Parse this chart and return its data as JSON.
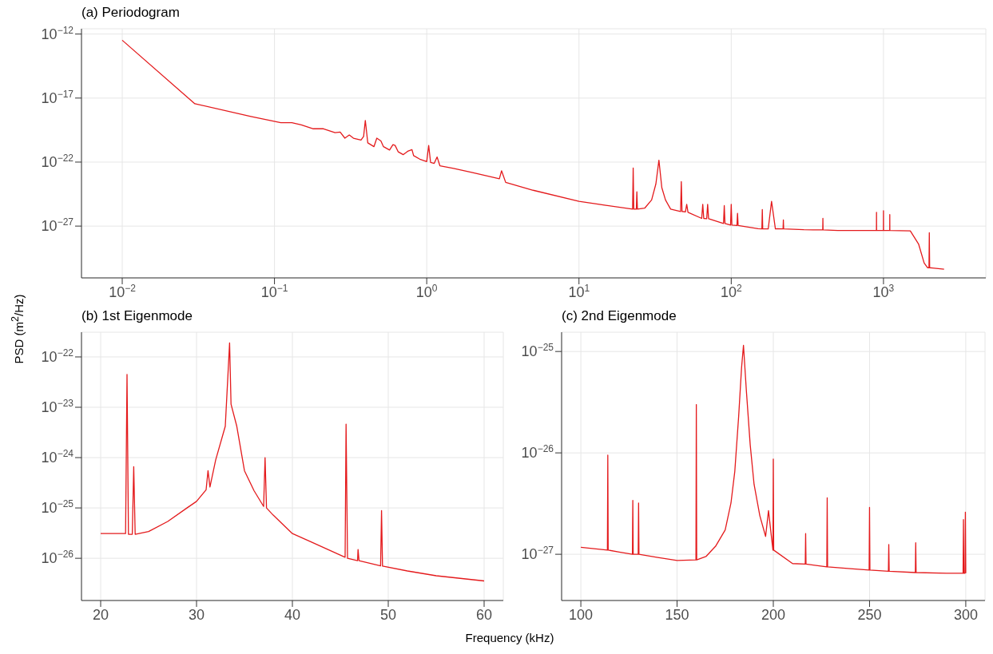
{
  "chart_data": [
    {
      "type": "line",
      "title": "(a) Periodogram",
      "log": "xy",
      "grid": true,
      "legend": false,
      "marker": "none",
      "line_style": "solid",
      "xlim": [
        0.0054,
        4700
      ],
      "ylim": [
        9e-32,
        2.6e-12
      ],
      "xticks": [
        {
          "value": 0.01,
          "label": "10$^{−2}$"
        },
        {
          "value": 0.1,
          "label": "10$^{−1}$"
        },
        {
          "value": 1,
          "label": "10$^{0}$"
        },
        {
          "value": 10,
          "label": "10$^{1}$"
        },
        {
          "value": 100,
          "label": "10$^{2}$"
        },
        {
          "value": 1000,
          "label": "10$^{3}$"
        }
      ],
      "yticks": [
        {
          "value": 1e-12,
          "label": "10$^{−12}$"
        },
        {
          "value": 1e-17,
          "label": "10$^{−17}$"
        },
        {
          "value": 1e-22,
          "label": "10$^{−22}$"
        },
        {
          "value": 1e-27,
          "label": "10$^{−27}$"
        }
      ],
      "series": [
        {
          "color": "#e41a1c",
          "x": [
            0.01,
            0.03,
            0.07,
            0.11,
            0.13,
            0.15,
            0.18,
            0.21,
            0.25,
            0.27,
            0.29,
            0.31,
            0.33,
            0.37,
            0.385,
            0.395,
            0.41,
            0.45,
            0.47,
            0.5,
            0.52,
            0.57,
            0.6,
            0.62,
            0.65,
            0.7,
            0.75,
            0.8,
            0.82,
            0.9,
            1.0,
            1.03,
            1.06,
            1.12,
            1.17,
            1.22,
            1.5,
            2,
            3.0,
            3.1,
            3.3,
            5,
            10,
            15,
            22.5,
            22.7,
            22.9,
            23.8,
            24.0,
            24.2,
            27,
            30,
            32,
            33.5,
            35,
            37,
            40,
            46.5,
            47,
            47.5,
            50,
            51,
            52,
            64,
            65,
            66,
            69,
            70,
            71,
            89,
            90,
            91,
            99,
            100,
            101,
            109,
            110,
            111,
            150,
            159,
            160,
            161,
            175,
            184,
            195,
            200,
            219,
            220,
            221,
            300,
            399,
            400,
            401,
            500,
            899,
            900,
            901,
            999,
            1000,
            1001,
            1099,
            1100,
            1101,
            1500,
            1700,
            1850,
            1950,
            1990,
            2000,
            2010,
            2100,
            2500
          ],
          "values": [
            3.3e-13,
            3.6e-18,
            3.7e-19,
            1.2e-19,
            1.2e-19,
            8e-20,
            4e-20,
            4e-20,
            2e-20,
            2.2e-20,
            7.4e-21,
            1.3e-20,
            7.4e-21,
            5.2e-21,
            1e-20,
            1.8e-19,
            3.2e-21,
            1.6e-21,
            7.4e-21,
            4.5e-21,
            1.6e-21,
            8.7e-22,
            2.3e-21,
            2e-21,
            6.3e-22,
            3.8e-22,
            7e-22,
            9.3e-22,
            3.2e-22,
            1.7e-22,
            1.1e-22,
            2e-21,
            9.3e-23,
            8e-23,
            2.5e-22,
            5.2e-23,
            3.2e-23,
            1.5e-23,
            5e-24,
            2.1e-23,
            2.6e-24,
            6.3e-25,
            8.7e-26,
            4.2e-26,
            2.1e-26,
            3.4e-23,
            2.1e-26,
            2.1e-26,
            4.8e-25,
            2.1e-26,
            2.5e-26,
            1.1e-25,
            2e-24,
            1.4e-22,
            1e-24,
            1.1e-25,
            2.1e-26,
            1.4e-26,
            3e-24,
            1.4e-26,
            1.3e-26,
            5e-26,
            1.2e-26,
            4e-27,
            5e-26,
            4e-27,
            3.8e-27,
            5e-26,
            3.8e-27,
            1.6e-27,
            4e-26,
            1.6e-27,
            1.2e-27,
            5e-26,
            1.2e-27,
            1.1e-27,
            1e-26,
            1.1e-27,
            6.3e-28,
            6e-28,
            2e-26,
            6e-28,
            6e-28,
            8.7e-26,
            6e-28,
            6.3e-28,
            6e-28,
            3e-27,
            6e-28,
            5.2e-28,
            5e-28,
            4e-27,
            5e-28,
            4.5e-28,
            4.5e-28,
            1.2e-26,
            4.5e-28,
            4.5e-28,
            1.6e-26,
            4.5e-28,
            4.5e-28,
            8e-27,
            4.5e-28,
            4.2e-28,
            4e-29,
            1.3e-30,
            5.6e-31,
            5.6e-31,
            3e-28,
            5.6e-31,
            5.3e-31,
            4.3e-31
          ]
        }
      ]
    },
    {
      "type": "line",
      "title": "(b) 1st Eigenmode",
      "xlabel": "Frequency (kHz)",
      "ylabel": "PSD (m$^{2}$/Hz)",
      "log": "y",
      "grid": true,
      "legend": false,
      "marker": "none",
      "line_style": "solid",
      "xlim": [
        18,
        62
      ],
      "ylim": [
        1.45e-27,
        3.1e-22
      ],
      "xticks": [
        20,
        30,
        40,
        50,
        60
      ],
      "yticks": [
        {
          "value": 1e-22,
          "label": "10$^{−22}$"
        },
        {
          "value": 1e-23,
          "label": "10$^{−23}$"
        },
        {
          "value": 1e-24,
          "label": "10$^{−24}$"
        },
        {
          "value": 1e-25,
          "label": "10$^{−25}$"
        },
        {
          "value": 1e-26,
          "label": "10$^{−26}$"
        }
      ],
      "series": [
        {
          "color": "#e41a1c",
          "x": [
            20,
            22.6,
            22.75,
            22.9,
            23.3,
            23.45,
            23.6,
            25,
            27,
            29,
            30,
            31,
            31.2,
            31.4,
            32,
            33,
            33.45,
            33.6,
            34.2,
            35,
            36,
            37,
            37.15,
            37.3,
            38,
            40,
            42,
            45.5,
            45.6,
            45.75,
            46.8,
            46.85,
            46.95,
            49.2,
            49.3,
            49.4,
            52,
            55,
            60
          ],
          "values": [
            3.1e-26,
            3.1e-26,
            4.5e-23,
            3e-26,
            3e-26,
            6.6e-25,
            3e-26,
            3.4e-26,
            5.4e-26,
            1e-25,
            1.35e-25,
            2.3e-25,
            5.5e-25,
            2.6e-25,
            9e-25,
            4.2e-24,
            1.9e-22,
            1.15e-23,
            4.2e-24,
            5.5e-25,
            2.2e-25,
            1.07e-25,
            1e-24,
            1e-25,
            7.2e-26,
            3.1e-26,
            2.1e-26,
            1.05e-26,
            4.6e-24,
            1e-26,
            9e-27,
            1.5e-26,
            9e-27,
            7.1e-27,
            8.9e-26,
            7e-27,
            5.6e-27,
            4.5e-27,
            3.55e-27
          ]
        }
      ]
    },
    {
      "type": "line",
      "title": "(c) 2nd Eigenmode",
      "log": "y",
      "grid": true,
      "legend": false,
      "marker": "none",
      "line_style": "solid",
      "xlim": [
        90,
        310
      ],
      "ylim": [
        3.5e-28,
        1.55e-25
      ],
      "xticks": [
        100,
        150,
        200,
        250,
        300
      ],
      "yticks": [
        {
          "value": 1e-25,
          "label": "10$^{−25}$"
        },
        {
          "value": 1e-26,
          "label": "10$^{−26}$"
        },
        {
          "value": 1e-27,
          "label": "10$^{−27}$"
        }
      ],
      "series": [
        {
          "color": "#e41a1c",
          "x": [
            100,
            113.8,
            114,
            114.2,
            120,
            126.8,
            127,
            127.2,
            129.8,
            130,
            130.2,
            140,
            150,
            159.8,
            160,
            160.2,
            165,
            170,
            175,
            178,
            180,
            182,
            183.5,
            184.5,
            186,
            188,
            190,
            193,
            196,
            197.5,
            199.8,
            200,
            200.2,
            210,
            216.6,
            216.8,
            217,
            227.8,
            228,
            228.2,
            240,
            249.8,
            250,
            250.2,
            259.8,
            260,
            260.2,
            273.8,
            274,
            274.2,
            290,
            298.6,
            298.8,
            299,
            299.6,
            299.8,
            300
          ],
          "values": [
            1.17e-27,
            1.1e-27,
            9.5e-27,
            1.1e-27,
            1.05e-27,
            1e-27,
            3.4e-27,
            1e-27,
            1e-27,
            3.2e-27,
            1e-27,
            9.3e-28,
            8.7e-28,
            8.8e-28,
            3e-26,
            8.8e-28,
            9.5e-28,
            1.2e-27,
            1.74e-27,
            3.2e-27,
            6.6e-27,
            2.3e-26,
            6.9e-26,
            1.15e-25,
            4.1e-26,
            1.2e-26,
            4.9e-27,
            2.4e-27,
            1.5e-27,
            2.7e-27,
            1.1e-27,
            8.7e-27,
            1.1e-27,
            8.1e-28,
            8e-28,
            1.6e-27,
            8e-28,
            7.5e-28,
            3.6e-27,
            7.5e-28,
            7.2e-28,
            7e-28,
            2.9e-27,
            7e-28,
            6.8e-28,
            1.25e-27,
            6.8e-28,
            6.6e-28,
            1.3e-27,
            6.6e-28,
            6.5e-28,
            6.5e-28,
            2.2e-27,
            6.5e-28,
            6.5e-28,
            2.6e-27,
            6.5e-28
          ]
        }
      ]
    }
  ]
}
